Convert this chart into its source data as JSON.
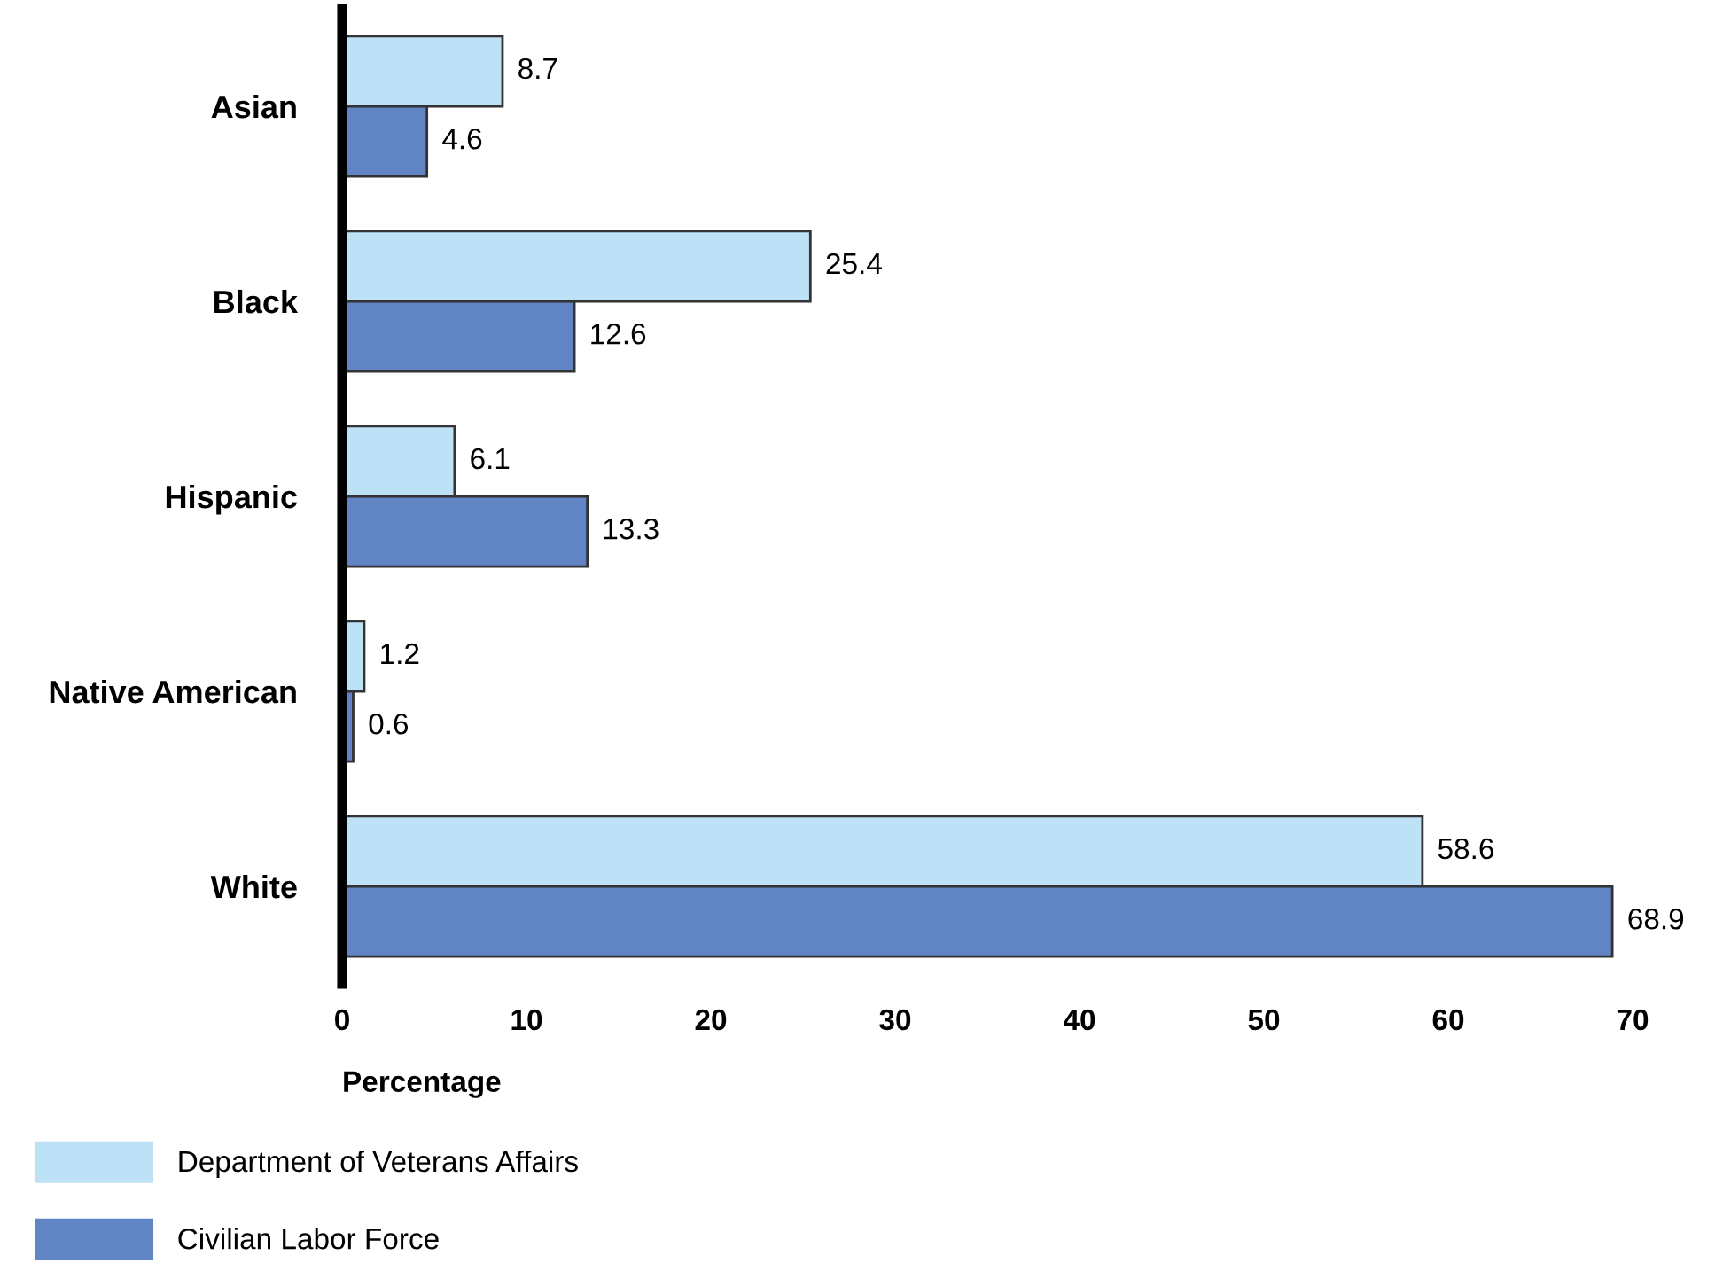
{
  "chart_data": {
    "type": "bar",
    "orientation": "horizontal",
    "xlabel": "Percentage",
    "categories": [
      "Asian",
      "Black",
      "Hispanic",
      "Native American",
      "White"
    ],
    "series": [
      {
        "name": "Department of Veterans Affairs",
        "color": "#bde2f7",
        "values": [
          8.7,
          25.4,
          6.1,
          1.2,
          58.6
        ]
      },
      {
        "name": "Civilian Labor Force",
        "color": "#6184c4",
        "values": [
          4.6,
          12.6,
          13.3,
          0.6,
          68.9
        ]
      }
    ],
    "xlim": [
      0,
      70
    ],
    "xticks": [
      0,
      10,
      20,
      30,
      40,
      50,
      60,
      70
    ],
    "data_labels": true,
    "grid": false,
    "legend": "bottom left"
  }
}
